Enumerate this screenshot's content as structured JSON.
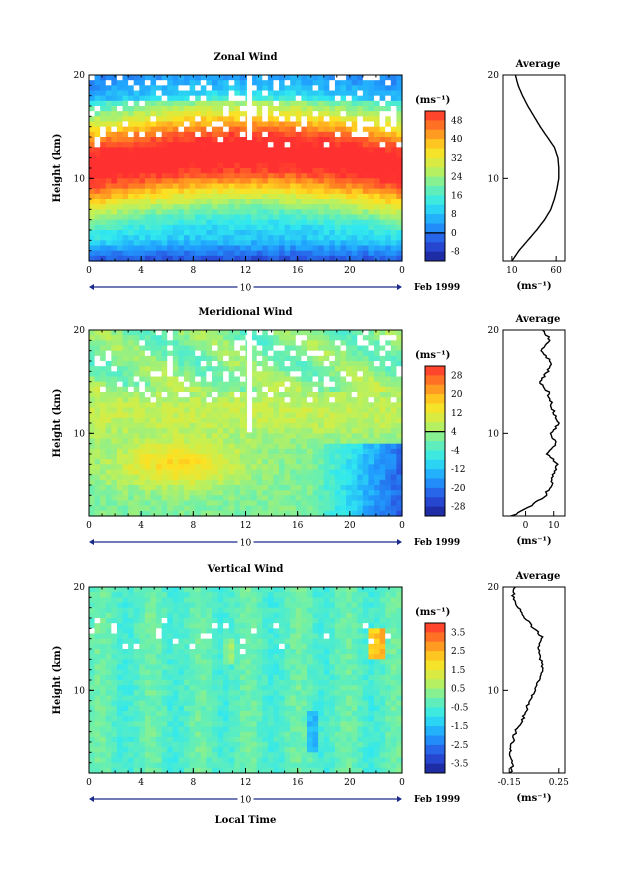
{
  "figure": {
    "xlabel": "Local Time",
    "date_label": "Feb 1999",
    "day_label": "10",
    "x_ticks": [
      "0",
      "4",
      "8",
      "12",
      "16",
      "20",
      "0"
    ]
  },
  "chart_data": [
    {
      "type": "heatmap",
      "title": "Zonal Wind",
      "ylabel": "Height (km)",
      "y_ticks": [
        "20",
        "10"
      ],
      "ylim": [
        2,
        20
      ],
      "colorbar": {
        "unit_label": "(ms⁻¹)",
        "labels": [
          "48",
          "40",
          "32",
          "24",
          "16",
          "8",
          "0",
          "-8"
        ],
        "zero_label_index": 6
      },
      "profile": {
        "title": "Average",
        "x_ticks": [
          "10",
          "60"
        ],
        "xlim": [
          0,
          70
        ],
        "unit_label": "(ms⁻¹)",
        "y_ticks": [
          "20",
          "10"
        ],
        "height_km": [
          2,
          3,
          4,
          5,
          6,
          7,
          8,
          9,
          10,
          11,
          12,
          13,
          14,
          15,
          16,
          17,
          18,
          19,
          20
        ],
        "values": [
          10,
          18,
          28,
          38,
          47,
          54,
          58,
          61,
          63,
          63,
          62,
          58,
          50,
          42,
          35,
          28,
          22,
          17,
          14
        ]
      }
    },
    {
      "type": "heatmap",
      "title": "Meridional Wind",
      "ylabel": "Height (km)",
      "y_ticks": [
        "20",
        "10"
      ],
      "ylim": [
        2,
        20
      ],
      "colorbar": {
        "unit_label": "(ms⁻¹)",
        "labels": [
          "28",
          "20",
          "12",
          "4",
          "-4",
          "-12",
          "-20",
          "-28"
        ],
        "zero_label_index": 3
      },
      "profile": {
        "title": "Average",
        "x_ticks": [
          "0",
          "10"
        ],
        "xlim": [
          -8,
          14
        ],
        "unit_label": "(ms⁻¹)",
        "y_ticks": [
          "20",
          "10"
        ],
        "height_km": [
          2,
          3,
          4,
          5,
          6,
          7,
          8,
          9,
          10,
          11,
          12,
          13,
          14,
          15,
          16,
          17,
          18,
          19,
          20
        ],
        "values": [
          -5,
          2,
          7,
          9,
          10,
          11,
          8,
          11,
          9,
          12,
          10,
          9,
          8,
          5,
          8,
          9,
          5,
          9,
          6
        ]
      }
    },
    {
      "type": "heatmap",
      "title": "Vertical Wind",
      "ylabel": "Height (km)",
      "y_ticks": [
        "20",
        "10"
      ],
      "ylim": [
        2,
        20
      ],
      "colorbar": {
        "unit_label": "(ms⁻¹)",
        "labels": [
          "3.5",
          "2.5",
          "1.5",
          "0.5",
          "-0.5",
          "-1.5",
          "-2.5",
          "-3.5"
        ],
        "zero_label_index": -1
      },
      "profile": {
        "title": "Average",
        "x_ticks": [
          "-0.15",
          "0.25"
        ],
        "xlim": [
          -0.2,
          0.3
        ],
        "unit_label": "(ms⁻¹)",
        "y_ticks": [
          "20",
          "10"
        ],
        "height_km": [
          2,
          3,
          4,
          5,
          6,
          7,
          8,
          9,
          10,
          11,
          12,
          13,
          14,
          15,
          16,
          17,
          18,
          19,
          20
        ],
        "values": [
          -0.14,
          -0.12,
          -0.15,
          -0.12,
          -0.1,
          -0.05,
          -0.02,
          0.02,
          0.05,
          0.1,
          0.13,
          0.1,
          0.08,
          0.12,
          0.05,
          -0.02,
          -0.08,
          -0.12,
          -0.1
        ]
      }
    }
  ]
}
